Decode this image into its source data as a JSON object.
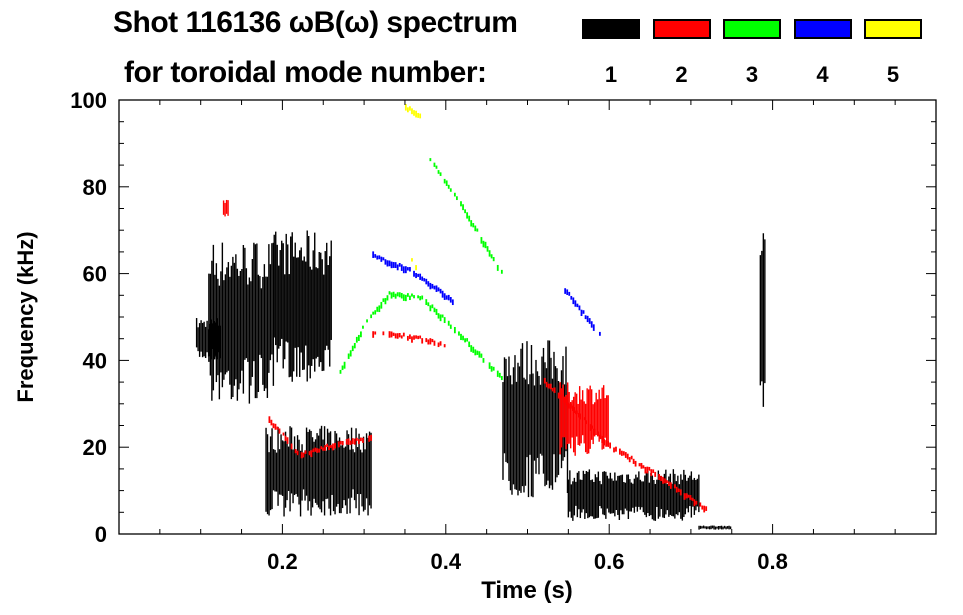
{
  "chart_data": {
    "type": "heatmap",
    "title": "Shot 116136 ωB(ω) spectrum",
    "subtitle": "for toroidal mode number:",
    "xlabel": "Time (s)",
    "ylabel": "Frequency (kHz)",
    "xlim": [
      0,
      1.0
    ],
    "ylim": [
      0,
      100
    ],
    "xticks": [
      0.2,
      0.4,
      0.6,
      0.8
    ],
    "xtick_labels": [
      "0.2",
      "0.4",
      "0.6",
      "0.8"
    ],
    "yticks": [
      0,
      20,
      40,
      60,
      80,
      100
    ],
    "ytick_labels": [
      "0",
      "20",
      "40",
      "60",
      "80",
      "100"
    ],
    "legend": {
      "placement": "top-right",
      "entries": [
        {
          "label": "1",
          "color": "#000000"
        },
        {
          "label": "2",
          "color": "#ff0000"
        },
        {
          "label": "3",
          "color": "#00ff00"
        },
        {
          "label": "4",
          "color": "#0000ff"
        },
        {
          "label": "5",
          "color": "#ffff00"
        }
      ]
    },
    "modes": [
      {
        "n": 1,
        "color": "#000000",
        "regions_t0_t1_f0_f1": [
          [
            0.095,
            0.125,
            40,
            50
          ],
          [
            0.11,
            0.19,
            30,
            68
          ],
          [
            0.19,
            0.26,
            35,
            70
          ],
          [
            0.18,
            0.31,
            4,
            25
          ],
          [
            0.47,
            0.55,
            8,
            45
          ],
          [
            0.55,
            0.71,
            3,
            15
          ],
          [
            0.785,
            0.792,
            28,
            70
          ],
          [
            0.71,
            0.75,
            1,
            2
          ]
        ],
        "tracks": []
      },
      {
        "n": 2,
        "color": "#ff0000",
        "regions_t0_t1_f0_f1": [
          [
            0.54,
            0.6,
            18,
            35
          ],
          [
            0.128,
            0.135,
            73,
            77
          ]
        ],
        "tracks": [
          [
            [
              0.183,
              26
            ],
            [
              0.22,
              18
            ],
            [
              0.28,
              21
            ],
            [
              0.31,
              22
            ]
          ],
          [
            [
              0.31,
              46
            ],
            [
              0.36,
              45
            ],
            [
              0.4,
              43
            ]
          ],
          [
            [
              0.52,
              35
            ],
            [
              0.6,
              20
            ],
            [
              0.66,
              13
            ],
            [
              0.72,
              5
            ]
          ]
        ]
      },
      {
        "n": 3,
        "color": "#00ff00",
        "regions_t0_t1_f0_f1": [],
        "tracks": [
          [
            [
              0.27,
              37
            ],
            [
              0.3,
              48
            ],
            [
              0.33,
              55
            ],
            [
              0.37,
              54
            ],
            [
              0.42,
              45
            ],
            [
              0.47,
              35
            ]
          ],
          [
            [
              0.38,
              86
            ],
            [
              0.42,
              75
            ],
            [
              0.47,
              59
            ]
          ]
        ]
      },
      {
        "n": 4,
        "color": "#0000ff",
        "regions_t0_t1_f0_f1": [],
        "tracks": [
          [
            [
              0.31,
              64
            ],
            [
              0.36,
              60
            ],
            [
              0.41,
              53
            ]
          ],
          [
            [
              0.545,
              56
            ],
            [
              0.59,
              45
            ]
          ]
        ]
      },
      {
        "n": 5,
        "color": "#ffff00",
        "regions_t0_t1_f0_f1": [],
        "tracks": [
          [
            [
              0.35,
              98
            ],
            [
              0.37,
              96
            ]
          ],
          [
            [
              0.355,
              63
            ],
            [
              0.365,
              61
            ]
          ]
        ]
      }
    ]
  }
}
